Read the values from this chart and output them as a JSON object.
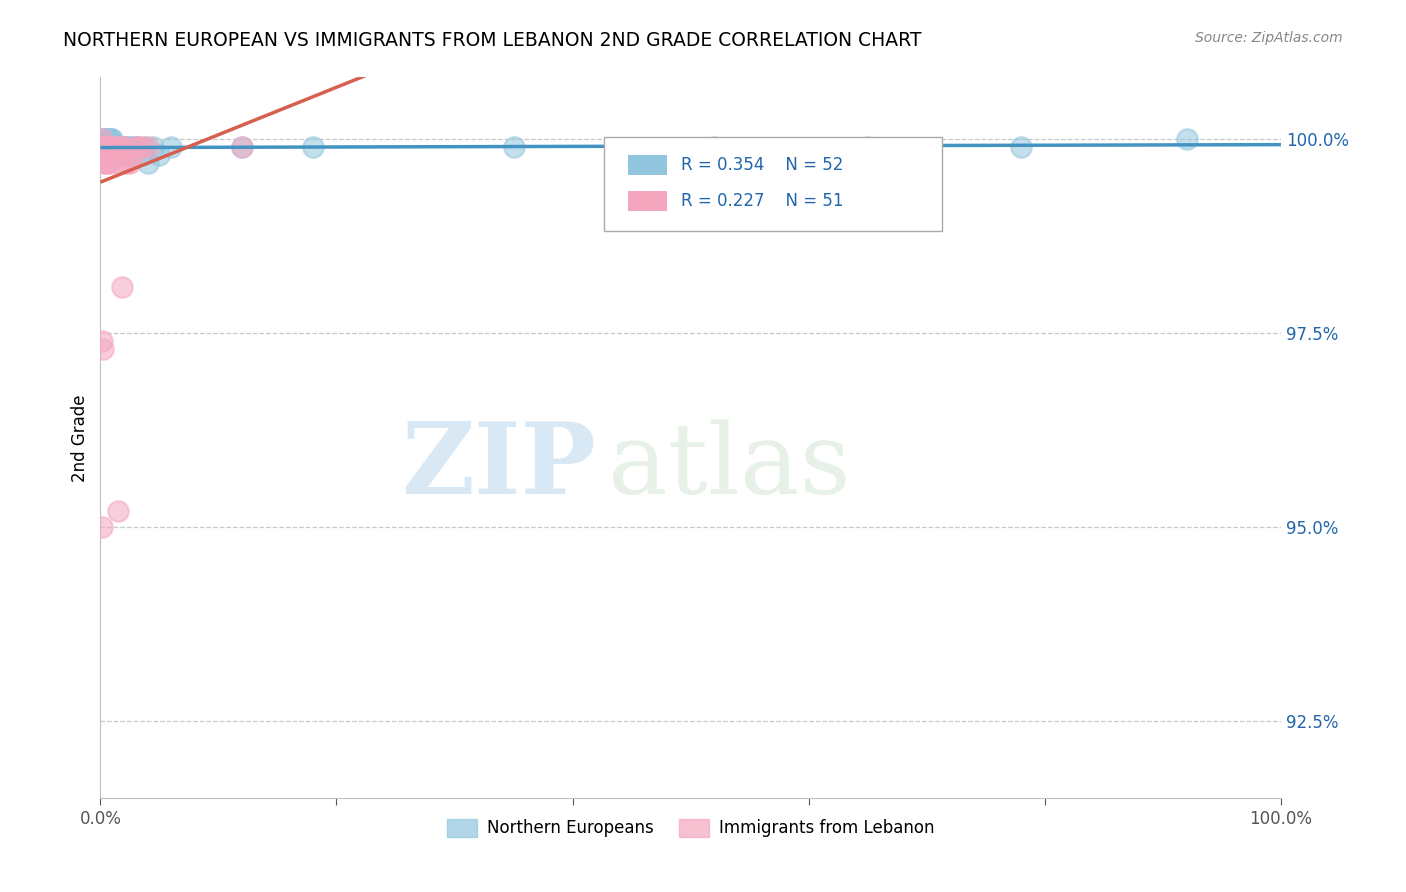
{
  "title": "NORTHERN EUROPEAN VS IMMIGRANTS FROM LEBANON 2ND GRADE CORRELATION CHART",
  "source": "Source: ZipAtlas.com",
  "ylabel": "2nd Grade",
  "ylabel_right_ticks": [
    "100.0%",
    "97.5%",
    "95.0%",
    "92.5%"
  ],
  "ylabel_right_vals": [
    1.0,
    0.975,
    0.95,
    0.925
  ],
  "legend_blue_label": "Northern Europeans",
  "legend_pink_label": "Immigrants from Lebanon",
  "R_blue": 0.354,
  "N_blue": 52,
  "R_pink": 0.227,
  "N_pink": 51,
  "blue_color": "#92c5de",
  "pink_color": "#f4a6be",
  "blue_line_color": "#4393c3",
  "pink_line_color": "#d6604d",
  "watermark_zip": "ZIP",
  "watermark_atlas": "atlas",
  "xlim": [
    0.0,
    1.0
  ],
  "ylim": [
    0.915,
    1.008
  ],
  "blue_x": [
    0.001,
    0.002,
    0.002,
    0.003,
    0.003,
    0.004,
    0.004,
    0.005,
    0.005,
    0.006,
    0.006,
    0.007,
    0.007,
    0.008,
    0.008,
    0.009,
    0.009,
    0.01,
    0.01,
    0.011,
    0.011,
    0.012,
    0.013,
    0.014,
    0.015,
    0.016,
    0.017,
    0.018,
    0.019,
    0.02,
    0.021,
    0.022,
    0.023,
    0.024,
    0.025,
    0.026,
    0.028,
    0.03,
    0.032,
    0.035,
    0.038,
    0.04,
    0.045,
    0.05,
    0.06,
    0.12,
    0.18,
    0.35,
    0.52,
    0.65,
    0.78,
    0.92
  ],
  "blue_y": [
    0.999,
    0.999,
    1.0,
    0.999,
    1.0,
    1.0,
    0.999,
    1.0,
    0.999,
    1.0,
    0.999,
    1.0,
    0.999,
    1.0,
    0.999,
    1.0,
    0.998,
    0.999,
    1.0,
    0.999,
    0.999,
    0.999,
    0.999,
    0.999,
    0.998,
    0.999,
    0.999,
    0.998,
    0.999,
    0.998,
    0.999,
    0.999,
    0.998,
    0.999,
    0.998,
    0.999,
    0.998,
    0.999,
    0.999,
    0.998,
    0.999,
    0.997,
    0.999,
    0.998,
    0.999,
    0.999,
    0.999,
    0.999,
    0.999,
    0.999,
    0.999,
    1.0
  ],
  "pink_x": [
    0.001,
    0.001,
    0.001,
    0.001,
    0.002,
    0.002,
    0.002,
    0.002,
    0.003,
    0.003,
    0.003,
    0.004,
    0.004,
    0.004,
    0.005,
    0.005,
    0.005,
    0.006,
    0.006,
    0.007,
    0.007,
    0.007,
    0.008,
    0.008,
    0.009,
    0.009,
    0.01,
    0.01,
    0.011,
    0.012,
    0.013,
    0.014,
    0.015,
    0.016,
    0.017,
    0.018,
    0.019,
    0.02,
    0.022,
    0.025,
    0.028,
    0.03,
    0.032,
    0.035,
    0.04,
    0.001,
    0.002,
    0.018,
    0.001,
    0.015,
    0.12
  ],
  "pink_y": [
    0.999,
    1.0,
    0.999,
    0.998,
    0.999,
    0.999,
    0.998,
    0.999,
    0.999,
    0.999,
    0.997,
    0.999,
    0.998,
    0.999,
    0.999,
    0.997,
    0.999,
    0.999,
    0.997,
    0.999,
    0.998,
    0.998,
    0.999,
    0.997,
    0.999,
    0.998,
    0.998,
    0.999,
    0.998,
    0.998,
    0.999,
    0.999,
    0.998,
    0.997,
    0.999,
    0.998,
    0.999,
    0.999,
    0.997,
    0.997,
    0.998,
    0.999,
    0.999,
    0.999,
    0.999,
    0.974,
    0.973,
    0.981,
    0.95,
    0.952,
    0.999
  ]
}
